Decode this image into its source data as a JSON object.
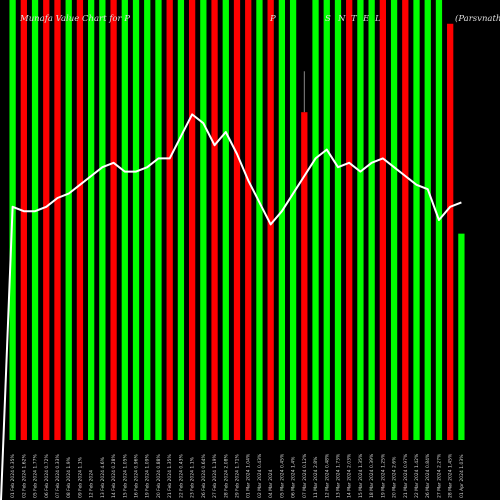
{
  "chart_data": {
    "type": "bar",
    "title_segments": [
      "Munafa Value Chart for P",
      "P",
      "S",
      "N",
      "T",
      "E",
      "L",
      "(Parsvnath L"
    ],
    "colors": {
      "up": "#00ff00",
      "down": "#ff0000",
      "line": "#ffffff",
      "background": "#000000"
    },
    "categories": [
      "01 Feb 2024 0.35%",
      "02 Feb 2024 1.62%",
      "05 Feb 2024 1.77%",
      "06 Feb 2024 0.72%",
      "07 Feb 2024 0.33%",
      "08 Feb 2024 1.9%",
      "09 Feb 2024 1.1%",
      "12 Feb 2024",
      "13 Feb 2024 4.6%",
      "14 Feb 2024 0.28%",
      "15 Feb 2024 1.05%",
      "16 Feb 2024 0.96%",
      "19 Feb 2024 1.09%",
      "20 Feb 2024 0.88%",
      "21 Feb 2024 1.35%",
      "22 Feb 2024 0.43%",
      "23 Feb 2024 1.1%",
      "26 Feb 2024 0.64%",
      "27 Feb 2024 1.19%",
      "28 Feb 2024 2.08%",
      "29 Feb 2024 1.71%",
      "01 Mar 2024 1.04%",
      "02 Mar 2024 0.43%",
      "04 Mar 2024",
      "05 Mar 2024 0.45%",
      "06 Mar 2024 1.4%",
      "07 Mar 2024 0.12%",
      "11 Mar 2024 2.8%",
      "12 Mar 2024 0.48%",
      "13 Mar 2024 1.73%",
      "14 Mar 2024 2.03%",
      "15 Mar 2024 1.35%",
      "18 Mar 2024 0.39%",
      "19 Mar 2024 1.25%",
      "20 Mar 2024 2.6%",
      "21 Mar 2024 0.97%",
      "22 Mar 2024 1.42%",
      "26 Mar 2024 0.84%",
      "27 Mar 2024 2.27%",
      "28 Mar 2024 1.45%",
      "01 Apr 2024 1.03%"
    ],
    "colors_seq": [
      "g",
      "r",
      "g",
      "r",
      "r",
      "g",
      "r",
      "g",
      "g",
      "r",
      "g",
      "g",
      "g",
      "g",
      "r",
      "g",
      "r",
      "g",
      "r",
      "g",
      "r",
      "r",
      "g",
      "r",
      "g",
      "g",
      "r",
      "g",
      "g",
      "g",
      "r",
      "g",
      "g",
      "r",
      "g",
      "r",
      "g",
      "g",
      "g",
      "r",
      "g"
    ],
    "bar_top": [
      1,
      1,
      1,
      1,
      1,
      1,
      1,
      1,
      1,
      1,
      1,
      1,
      1,
      1,
      1,
      1,
      1,
      1,
      1,
      1,
      1,
      1,
      1,
      1,
      1,
      1,
      0.745,
      1,
      1,
      1,
      1,
      1,
      1,
      1,
      1,
      1,
      1,
      1,
      1,
      0.946,
      0.469
    ],
    "wick_top": [
      null,
      null,
      null,
      null,
      null,
      null,
      null,
      null,
      null,
      null,
      null,
      null,
      null,
      null,
      null,
      null,
      null,
      null,
      null,
      null,
      null,
      null,
      null,
      null,
      null,
      null,
      0.838,
      null,
      null,
      null,
      null,
      null,
      null,
      null,
      null,
      null,
      null,
      null,
      null,
      null,
      null
    ],
    "line_values": [
      0.53,
      0.52,
      0.52,
      0.53,
      0.55,
      0.56,
      0.58,
      0.6,
      0.62,
      0.63,
      0.61,
      0.61,
      0.62,
      0.64,
      0.64,
      0.69,
      0.74,
      0.72,
      0.67,
      0.7,
      0.65,
      0.59,
      0.54,
      0.49,
      0.52,
      0.56,
      0.6,
      0.64,
      0.66,
      0.62,
      0.63,
      0.61,
      0.63,
      0.64,
      0.62,
      0.6,
      0.58,
      0.57,
      0.5,
      0.53,
      0.54
    ],
    "ylim": [
      0,
      1
    ]
  }
}
